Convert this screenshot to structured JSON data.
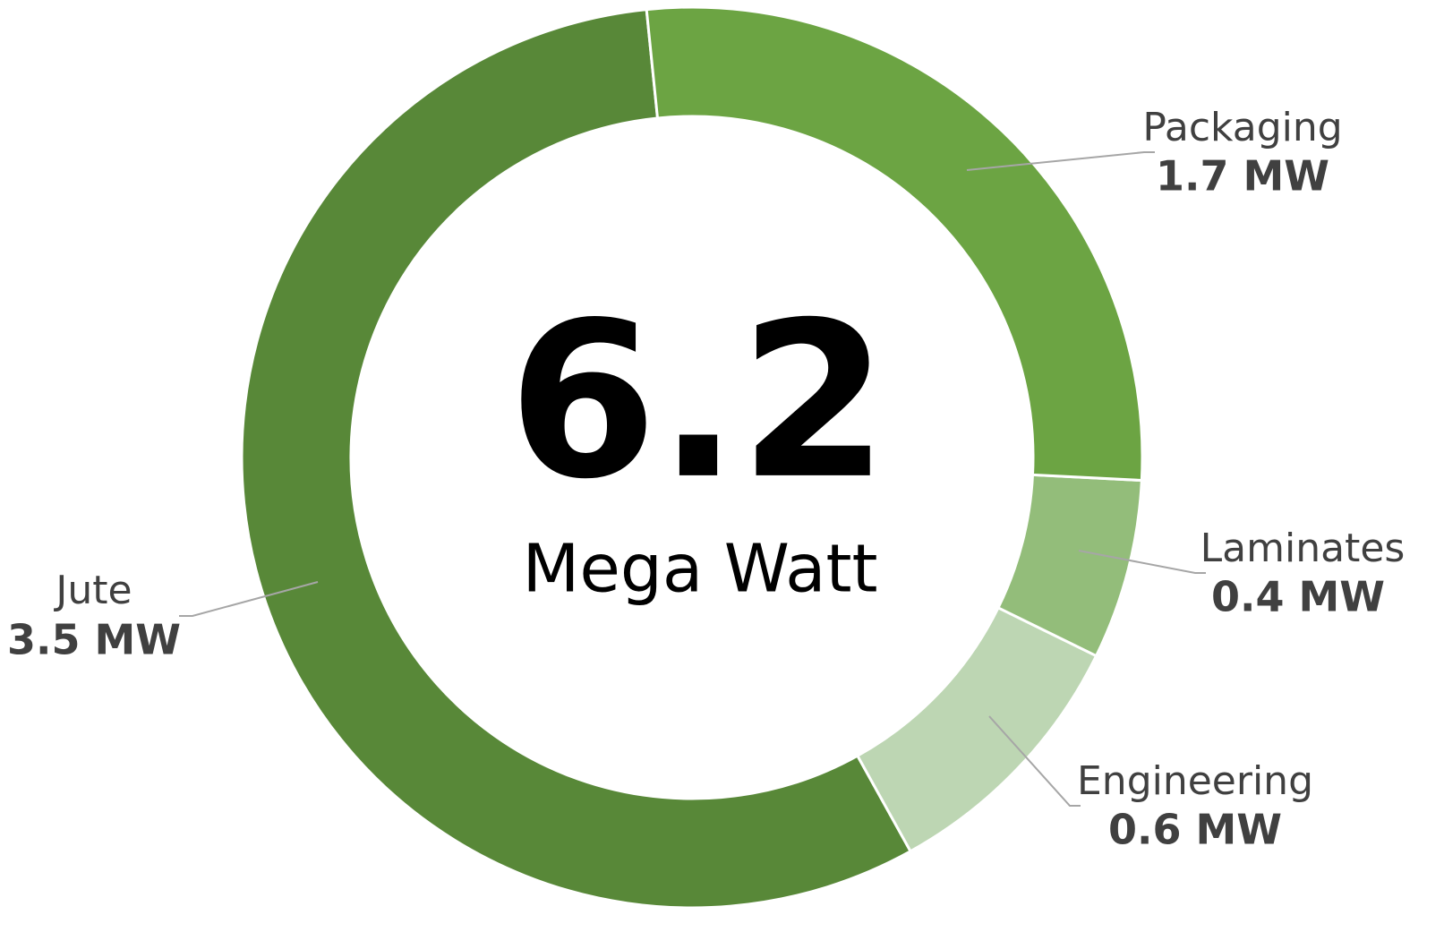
{
  "chart_data": {
    "type": "donut",
    "center_value": 6.2,
    "center_label": "Mega Watt",
    "categories": [
      "Packaging",
      "Laminates",
      "Engineering",
      "Jute"
    ],
    "values": [
      1.7,
      0.4,
      0.6,
      3.5
    ],
    "value_labels": [
      "1.7 MW",
      "0.4 MW",
      "0.6 MW",
      "3.5 MW"
    ],
    "colors": [
      "#6ca443",
      "#93bd7a",
      "#bdd6b3",
      "#588838"
    ]
  }
}
